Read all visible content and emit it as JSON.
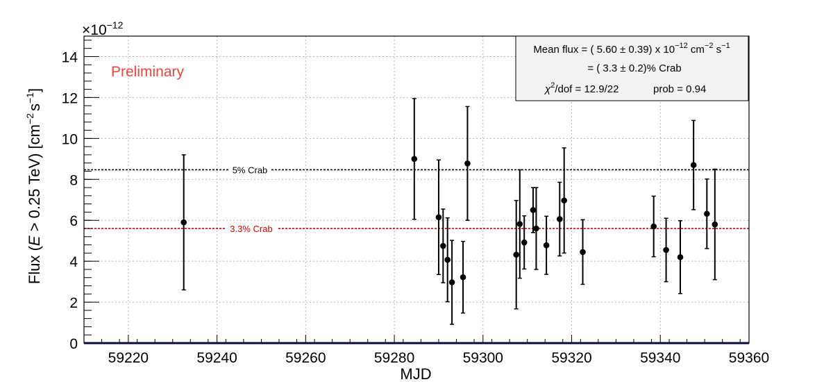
{
  "chart_data": {
    "type": "scatter",
    "title": "",
    "xlabel": "MJD",
    "ylabel_parts": [
      "Flux (",
      "E",
      " > 0.25 TeV) [cm",
      "−2",
      "s",
      "−1",
      "]"
    ],
    "y_multiplier_base": "×10",
    "y_multiplier_exp": "−12",
    "xlim": [
      59210,
      59360
    ],
    "ylim": [
      0,
      15
    ],
    "x_ticks": [
      59220,
      59240,
      59260,
      59280,
      59300,
      59320,
      59340,
      59360
    ],
    "y_ticks": [
      0,
      2,
      4,
      6,
      8,
      10,
      12,
      14
    ],
    "x_tick_labels": [
      "59220",
      "59240",
      "59260",
      "59280",
      "59300",
      "59320",
      "59340",
      "59360"
    ],
    "y_tick_labels": [
      "0",
      "2",
      "4",
      "6",
      "8",
      "10",
      "12",
      "14"
    ],
    "grid": true,
    "annotation": "Preliminary",
    "annotation_color": "#f0443a",
    "reference_lines": [
      {
        "label": "5% Crab",
        "y": 8.47,
        "color": "#000000"
      },
      {
        "label": "3.3% Crab",
        "y": 5.6,
        "color": "#d40000"
      }
    ],
    "stats_box": {
      "line1_prefix": "Mean flux = ( 5.60 ± 0.39) x 10",
      "line1_exp": "−12",
      "line1_unit": " cm",
      "line1_unit_exp": "−2",
      "line1_s": " s",
      "line1_s_exp": "−1",
      "line2": "= ( 3.3 ± 0.2)% Crab",
      "line3_chi": "χ",
      "line3_chi_exp": "2",
      "line3_rest": "/dof = 12.9/22",
      "line3_prob": "prob =  0.94"
    },
    "series": [
      {
        "points": [
          {
            "x": 59232.5,
            "y": 5.9,
            "err": 3.3
          },
          {
            "x": 59284.5,
            "y": 9.0,
            "err": 2.95
          },
          {
            "x": 59290.0,
            "y": 6.15,
            "err": 2.8
          },
          {
            "x": 59291.0,
            "y": 4.75,
            "err": 1.8
          },
          {
            "x": 59292.0,
            "y": 4.07,
            "err": 2.05
          },
          {
            "x": 59293.0,
            "y": 2.97,
            "err": 2.05
          },
          {
            "x": 59295.5,
            "y": 3.22,
            "err": 1.75
          },
          {
            "x": 59296.5,
            "y": 8.78,
            "err": 2.78
          },
          {
            "x": 59307.5,
            "y": 4.32,
            "err": 2.65
          },
          {
            "x": 59308.3,
            "y": 5.82,
            "err": 2.65
          },
          {
            "x": 59309.3,
            "y": 4.92,
            "err": 1.3
          },
          {
            "x": 59311.3,
            "y": 6.5,
            "err": 1.1
          },
          {
            "x": 59312.0,
            "y": 5.6,
            "err": 2.0
          },
          {
            "x": 59314.3,
            "y": 4.78,
            "err": 1.42
          },
          {
            "x": 59317.3,
            "y": 6.06,
            "err": 1.8
          },
          {
            "x": 59318.3,
            "y": 6.97,
            "err": 2.57
          },
          {
            "x": 59322.5,
            "y": 4.45,
            "err": 1.58
          },
          {
            "x": 59338.5,
            "y": 5.7,
            "err": 1.48
          },
          {
            "x": 59341.3,
            "y": 4.55,
            "err": 1.55
          },
          {
            "x": 59344.5,
            "y": 4.2,
            "err": 1.78
          },
          {
            "x": 59347.5,
            "y": 8.7,
            "err": 2.18
          },
          {
            "x": 59350.5,
            "y": 6.32,
            "err": 1.7
          },
          {
            "x": 59352.3,
            "y": 5.8,
            "err": 2.7
          }
        ]
      }
    ]
  }
}
